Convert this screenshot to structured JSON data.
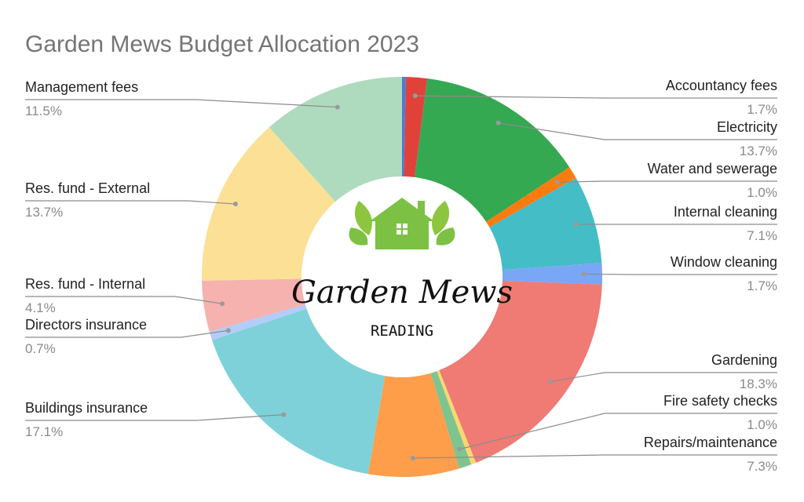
{
  "chart_data": {
    "type": "pie",
    "title": "Garden Mews Budget Allocation 2023",
    "slices": [
      {
        "label": "",
        "pct": "",
        "value": 0.3,
        "color": "#4a7bd8"
      },
      {
        "label": "Accountancy fees",
        "pct": "1.7%",
        "value": 1.7,
        "color": "#e0423a"
      },
      {
        "label": "Electricity",
        "pct": "13.7%",
        "value": 13.7,
        "color": "#35a852"
      },
      {
        "label": "Water and sewerage",
        "pct": "1.0%",
        "value": 1.0,
        "color": "#fb7c0e"
      },
      {
        "label": "Internal cleaning",
        "pct": "7.1%",
        "value": 7.1,
        "color": "#45bdc6"
      },
      {
        "label": "Window cleaning",
        "pct": "1.7%",
        "value": 1.7,
        "color": "#7aa6f6"
      },
      {
        "label": "Gardening",
        "pct": "18.3%",
        "value": 18.3,
        "color": "#ef7b74"
      },
      {
        "label": "",
        "pct": "",
        "value": 0.4,
        "color": "#fad86e"
      },
      {
        "label": "Fire safety checks",
        "pct": "1.0%",
        "value": 1.0,
        "color": "#7fc48f"
      },
      {
        "label": "Repairs/maintenance",
        "pct": "7.3%",
        "value": 7.3,
        "color": "#fe9d4a"
      },
      {
        "label": "Buildings insurance",
        "pct": "17.1%",
        "value": 17.1,
        "color": "#7ed1d8"
      },
      {
        "label": "Directors insurance",
        "pct": "0.7%",
        "value": 0.7,
        "color": "#b3ccf9"
      },
      {
        "label": "Res. fund - Internal",
        "pct": "4.1%",
        "value": 4.1,
        "color": "#f5b2ae"
      },
      {
        "label": "Res. fund - External",
        "pct": "13.7%",
        "value": 13.7,
        "color": "#fbe096"
      },
      {
        "label": "Management fees",
        "pct": "11.5%",
        "value": 11.5,
        "color": "#aedbbd"
      }
    ],
    "legend": "none"
  },
  "logo": {
    "name": "Garden Mews",
    "subtitle": "READING",
    "house_color": "#7cc143",
    "leaf_color": "#8cc63f"
  }
}
